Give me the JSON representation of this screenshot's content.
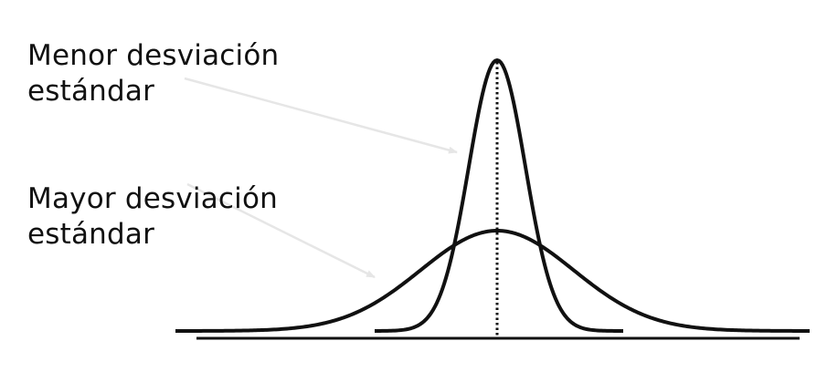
{
  "labels": {
    "narrow_line1": "Menor desviación",
    "narrow_line2": "estándar",
    "wide_line1": "Mayor desviación",
    "wide_line2": "estándar"
  },
  "curves": {
    "narrow": {
      "sigma_relative": 1
    },
    "wide": {
      "sigma_relative": 2.7
    }
  },
  "colors": {
    "curve": "#111111",
    "arrow": "#e6e6e6",
    "background": "#ffffff"
  }
}
